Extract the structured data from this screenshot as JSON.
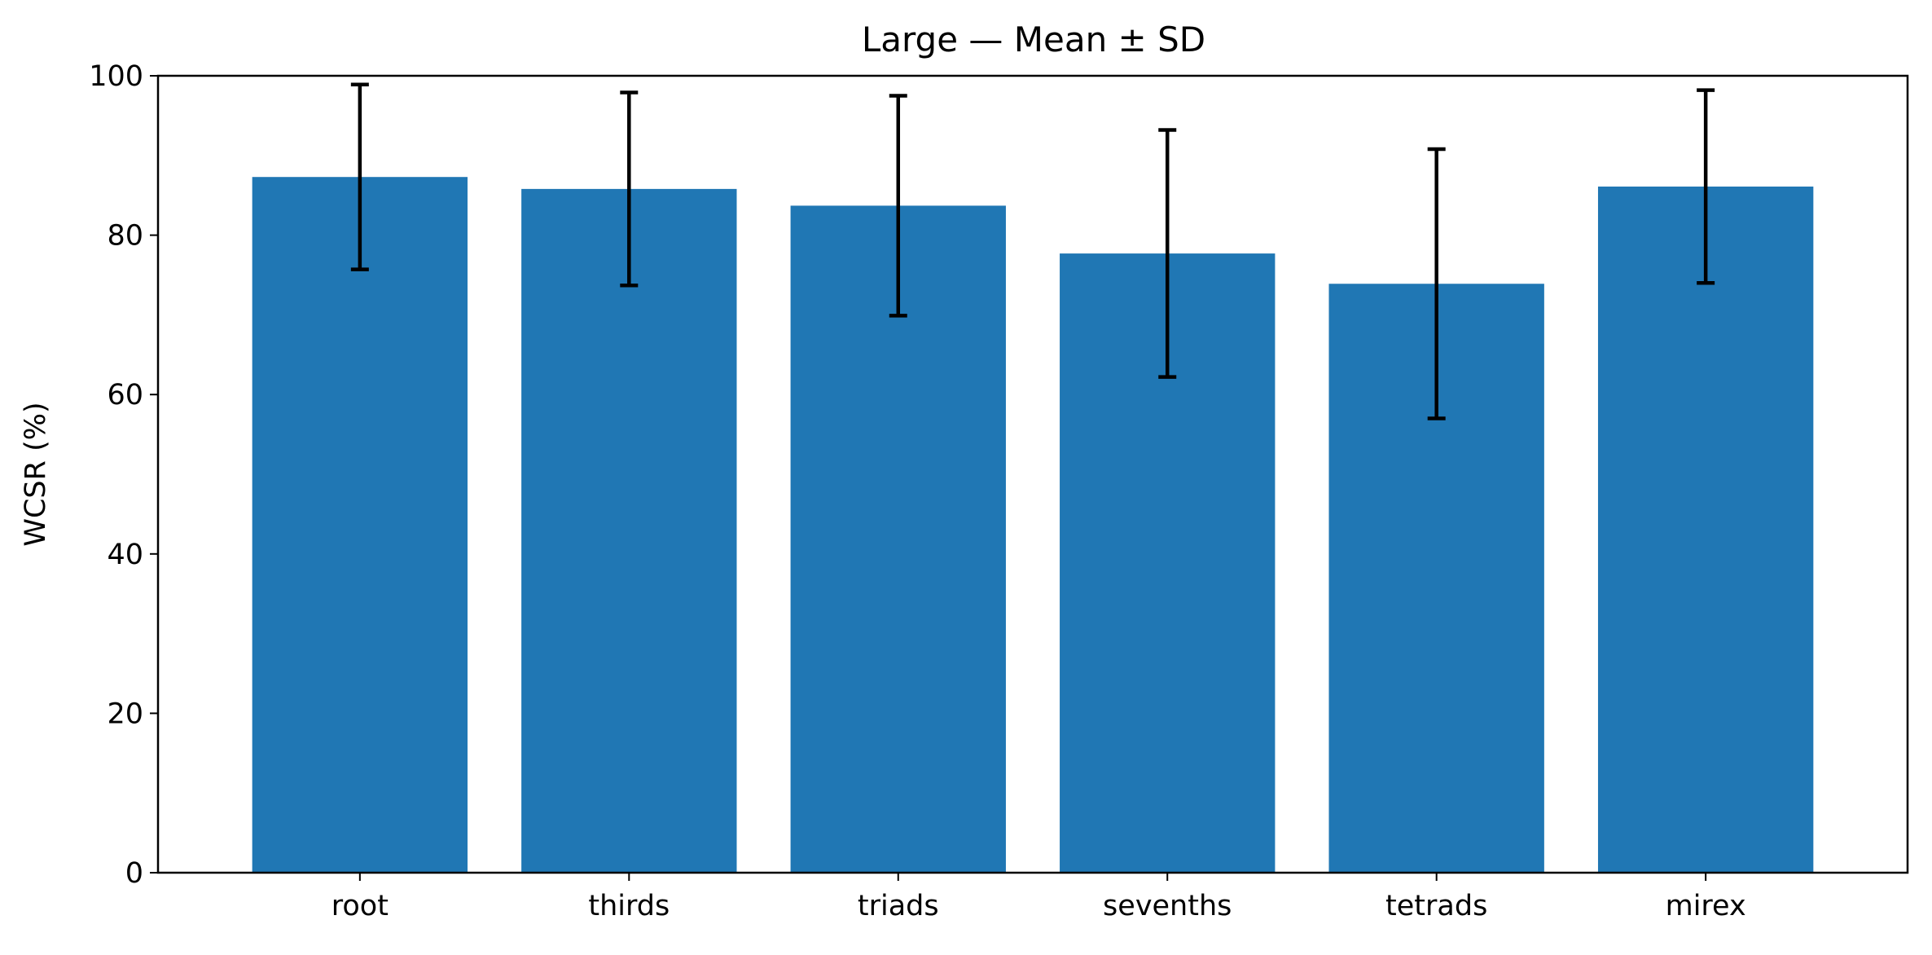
{
  "chart_data": {
    "type": "bar",
    "title": "Large — Mean ± SD",
    "xlabel": "",
    "ylabel": "WCSR (%)",
    "categories": [
      "root",
      "thirds",
      "triads",
      "sevenths",
      "tetrads",
      "mirex"
    ],
    "values": [
      87.3,
      85.8,
      83.7,
      77.7,
      73.9,
      86.1
    ],
    "error_sd": [
      11.6,
      12.1,
      13.8,
      15.5,
      16.9,
      12.1
    ],
    "ylim": [
      0,
      100
    ],
    "yticks": [
      "0",
      "20",
      "40",
      "60",
      "80",
      "100"
    ],
    "grid": false,
    "colors": {
      "bar": "#2077b4",
      "error": "#000000",
      "axis": "#000000"
    }
  }
}
